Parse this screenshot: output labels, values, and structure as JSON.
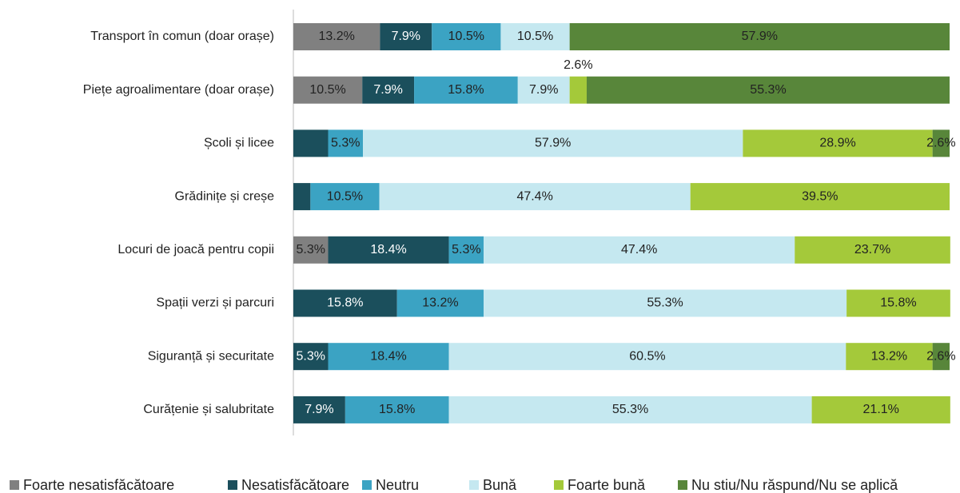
{
  "chart_data": {
    "type": "stacked-bar-horizontal-100",
    "categories": [
      "Transport în comun (doar orașe)",
      "Piețe agroalimentare (doar orașe)",
      "Școli și licee",
      "Grădinițe și creșe",
      "Locuri de joacă pentru copii",
      "Spații verzi și parcuri",
      "Siguranță și securitate",
      "Curățenie și salubritate"
    ],
    "xlim": [
      0,
      100
    ],
    "legend": "bottom",
    "series": [
      {
        "name": "Foarte nesatisfăcătoare",
        "color": "#808080",
        "values": [
          13.2,
          10.5,
          null,
          null,
          5.3,
          null,
          null,
          null
        ],
        "value_labels": [
          "13.2%",
          "10.5%",
          null,
          null,
          "5.3%",
          null,
          null,
          null
        ]
      },
      {
        "name": "Nesatisfăcătoare",
        "color": "#1b4f5c",
        "values": [
          7.9,
          7.9,
          5.3,
          2.6,
          18.4,
          15.8,
          5.3,
          7.9
        ],
        "value_labels": [
          "7.9%",
          "7.9%",
          null,
          null,
          "18.4%",
          "15.8%",
          "5.3%",
          "7.9%"
        ]
      },
      {
        "name": "Neutru",
        "color": "#3ba3c3",
        "values": [
          10.5,
          15.8,
          5.3,
          10.5,
          5.3,
          13.2,
          18.4,
          15.8
        ],
        "value_labels": [
          "10.5%",
          "15.8%",
          "5.3%",
          "10.5%",
          "5.3%",
          "13.2%",
          "18.4%",
          "15.8%"
        ]
      },
      {
        "name": "Bună",
        "color": "#c5e8f0",
        "values": [
          10.5,
          7.9,
          57.9,
          47.4,
          47.4,
          55.3,
          60.5,
          55.3
        ],
        "value_labels": [
          "10.5%",
          "7.9%",
          "57.9%",
          "47.4%",
          "47.4%",
          "55.3%",
          "60.5%",
          "55.3%"
        ]
      },
      {
        "name": "Foarte bună",
        "color": "#a4c93a",
        "values": [
          null,
          2.6,
          28.9,
          39.5,
          23.7,
          15.8,
          13.2,
          21.1
        ],
        "value_labels": [
          null,
          "2.6%",
          "28.9%",
          "39.5%",
          "23.7%",
          "15.8%",
          "13.2%",
          "21.1%"
        ]
      },
      {
        "name": "Nu stiu/Nu răspund/Nu se aplică",
        "color": "#58863a",
        "values": [
          57.9,
          55.3,
          2.6,
          null,
          null,
          null,
          2.6,
          null
        ],
        "value_labels": [
          "57.9%",
          "55.3%",
          "2.6%",
          null,
          null,
          null,
          "2.6%",
          null
        ]
      }
    ]
  }
}
